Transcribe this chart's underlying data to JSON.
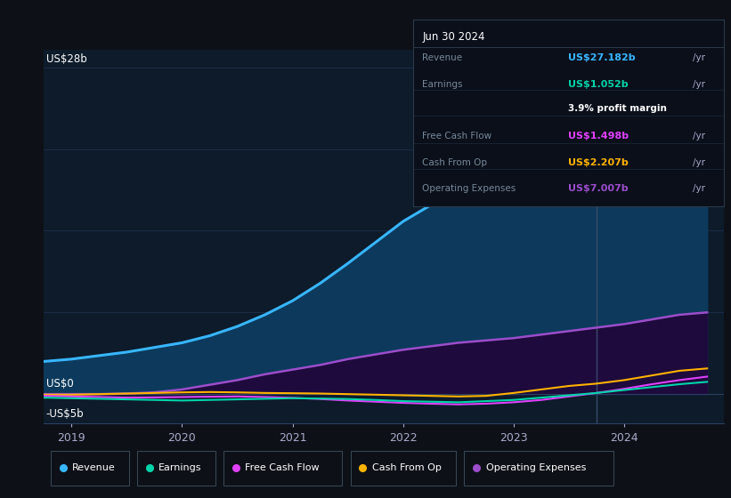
{
  "bg_color": "#0d1117",
  "plot_bg_color": "#0d1b2a",
  "ylabel_top": "US$28b",
  "ylabel_zero": "US$0",
  "ylabel_neg": "-US$5b",
  "x_years": [
    2019,
    2020,
    2021,
    2022,
    2023,
    2024
  ],
  "revenue": {
    "label": "Revenue",
    "color": "#38b6ff",
    "fill_color": "#0d3a5c",
    "x": [
      2018.75,
      2019.0,
      2019.25,
      2019.5,
      2019.75,
      2020.0,
      2020.25,
      2020.5,
      2020.75,
      2021.0,
      2021.25,
      2021.5,
      2021.75,
      2022.0,
      2022.25,
      2022.5,
      2022.75,
      2023.0,
      2023.25,
      2023.5,
      2023.75,
      2024.0,
      2024.25,
      2024.5,
      2024.75
    ],
    "y": [
      2.8,
      3.0,
      3.3,
      3.6,
      4.0,
      4.4,
      5.0,
      5.8,
      6.8,
      8.0,
      9.5,
      11.2,
      13.0,
      14.8,
      16.2,
      17.2,
      18.0,
      18.8,
      19.5,
      20.3,
      21.2,
      22.5,
      24.0,
      25.8,
      27.2
    ]
  },
  "earnings": {
    "label": "Earnings",
    "color": "#00d4aa",
    "x": [
      2018.75,
      2019.0,
      2019.25,
      2019.5,
      2019.75,
      2020.0,
      2020.25,
      2020.5,
      2020.75,
      2021.0,
      2021.25,
      2021.5,
      2021.75,
      2022.0,
      2022.25,
      2022.5,
      2022.75,
      2023.0,
      2023.25,
      2023.5,
      2023.75,
      2024.0,
      2024.25,
      2024.5,
      2024.75
    ],
    "y": [
      -0.3,
      -0.35,
      -0.4,
      -0.45,
      -0.5,
      -0.55,
      -0.5,
      -0.45,
      -0.4,
      -0.35,
      -0.38,
      -0.42,
      -0.5,
      -0.6,
      -0.65,
      -0.7,
      -0.6,
      -0.5,
      -0.3,
      -0.1,
      0.1,
      0.35,
      0.6,
      0.85,
      1.05
    ]
  },
  "free_cash_flow": {
    "label": "Free Cash Flow",
    "color": "#e040fb",
    "x": [
      2018.75,
      2019.0,
      2019.25,
      2019.5,
      2019.75,
      2020.0,
      2020.25,
      2020.5,
      2020.75,
      2021.0,
      2021.25,
      2021.5,
      2021.75,
      2022.0,
      2022.25,
      2022.5,
      2022.75,
      2023.0,
      2023.25,
      2023.5,
      2023.75,
      2024.0,
      2024.25,
      2024.5,
      2024.75
    ],
    "y": [
      -0.15,
      -0.2,
      -0.25,
      -0.3,
      -0.28,
      -0.25,
      -0.22,
      -0.2,
      -0.25,
      -0.32,
      -0.42,
      -0.55,
      -0.65,
      -0.75,
      -0.82,
      -0.88,
      -0.82,
      -0.7,
      -0.5,
      -0.2,
      0.1,
      0.45,
      0.85,
      1.2,
      1.5
    ]
  },
  "cash_from_op": {
    "label": "Cash From Op",
    "color": "#ffb300",
    "x": [
      2018.75,
      2019.0,
      2019.25,
      2019.5,
      2019.75,
      2020.0,
      2020.25,
      2020.5,
      2020.75,
      2021.0,
      2021.25,
      2021.5,
      2021.75,
      2022.0,
      2022.25,
      2022.5,
      2022.75,
      2023.0,
      2023.25,
      2023.5,
      2023.75,
      2024.0,
      2024.25,
      2024.5,
      2024.75
    ],
    "y": [
      -0.05,
      -0.05,
      0.0,
      0.05,
      0.1,
      0.15,
      0.18,
      0.15,
      0.1,
      0.08,
      0.05,
      0.0,
      -0.05,
      -0.1,
      -0.15,
      -0.2,
      -0.15,
      0.1,
      0.4,
      0.7,
      0.9,
      1.2,
      1.6,
      2.0,
      2.2
    ]
  },
  "operating_expenses": {
    "label": "Operating Expenses",
    "color": "#9c4dcc",
    "fill_color": "#1e0a3c",
    "x": [
      2018.75,
      2019.0,
      2019.25,
      2019.5,
      2019.75,
      2020.0,
      2020.25,
      2020.5,
      2020.75,
      2021.0,
      2021.25,
      2021.5,
      2021.75,
      2022.0,
      2022.25,
      2022.5,
      2022.75,
      2023.0,
      2023.25,
      2023.5,
      2023.75,
      2024.0,
      2024.25,
      2024.5,
      2024.75
    ],
    "y": [
      0.0,
      0.0,
      0.0,
      0.05,
      0.15,
      0.4,
      0.8,
      1.2,
      1.7,
      2.1,
      2.5,
      3.0,
      3.4,
      3.8,
      4.1,
      4.4,
      4.6,
      4.8,
      5.1,
      5.4,
      5.7,
      6.0,
      6.4,
      6.8,
      7.0
    ]
  },
  "infobox": {
    "date": "Jun 30 2024",
    "revenue_val": "US$27.182b",
    "revenue_color": "#38b6ff",
    "earnings_val": "US$1.052b",
    "earnings_color": "#00d4aa",
    "profit_margin": "3.9%",
    "fcf_val": "US$1.498b",
    "fcf_color": "#e040fb",
    "cashop_val": "US$2.207b",
    "cashop_color": "#ffb300",
    "opex_val": "US$7.007b",
    "opex_color": "#9c4dcc"
  },
  "vertical_line_x": 2023.75,
  "xlim": [
    2018.75,
    2024.9
  ],
  "ylim": [
    -2.5,
    29.5
  ]
}
